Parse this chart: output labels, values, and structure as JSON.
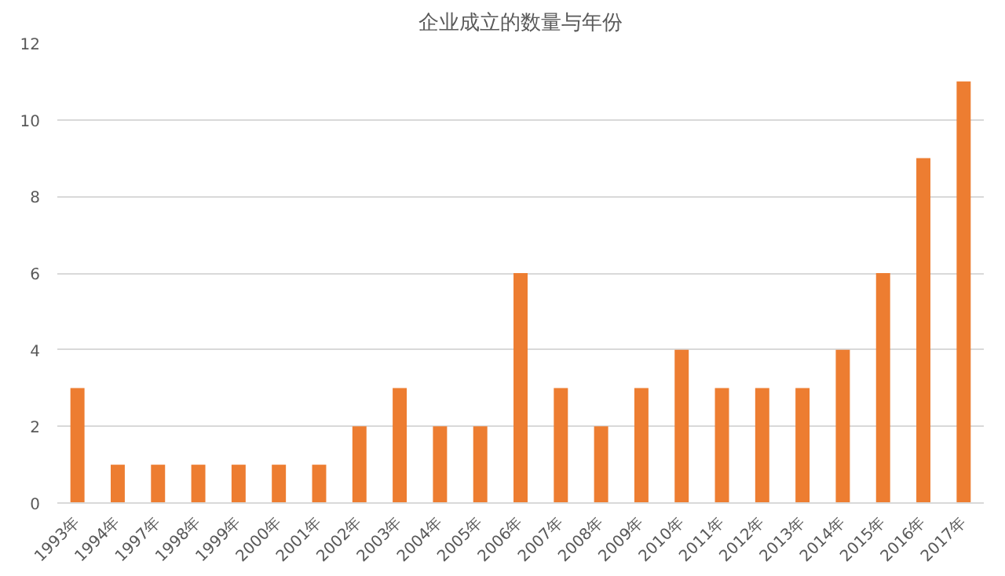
{
  "chart_data": {
    "type": "bar",
    "title": "企业成立的数量与年份",
    "categories": [
      "1993年",
      "1994年",
      "1997年",
      "1998年",
      "1999年",
      "2000年",
      "2001年",
      "2002年",
      "2003年",
      "2004年",
      "2005年",
      "2006年",
      "2007年",
      "2008年",
      "2009年",
      "2010年",
      "2011年",
      "2012年",
      "2013年",
      "2014年",
      "2015年",
      "2016年",
      "2017年"
    ],
    "values": [
      3,
      1,
      1,
      1,
      1,
      1,
      1,
      2,
      3,
      2,
      2,
      6,
      3,
      2,
      3,
      4,
      3,
      3,
      3,
      4,
      6,
      9,
      11
    ],
    "color": "#ed7d31",
    "ylim": [
      0,
      12
    ],
    "yticks": [
      0,
      2,
      4,
      6,
      8,
      10,
      12
    ],
    "grid": "y"
  }
}
